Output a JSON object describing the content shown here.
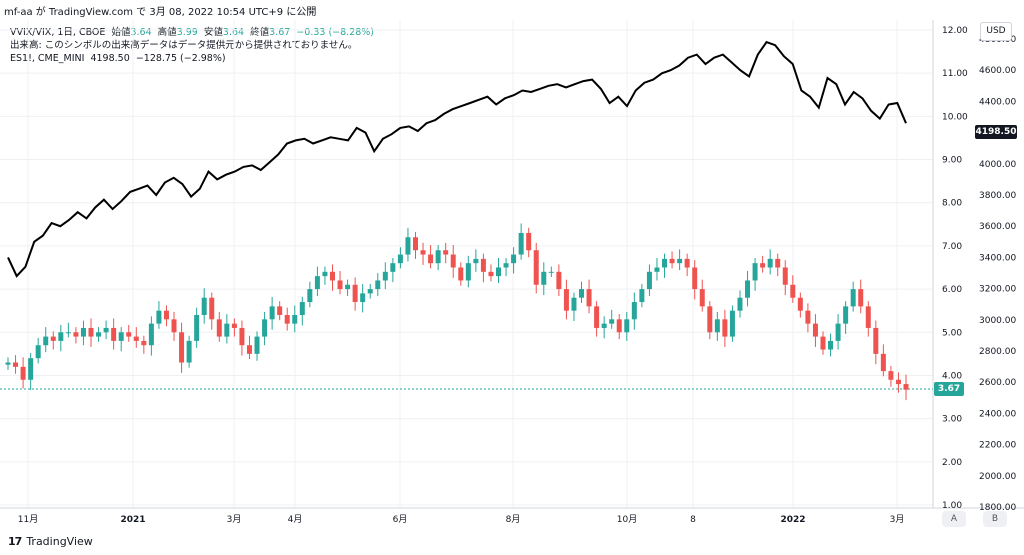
{
  "header": {
    "published": "mf-aa が TradingView.com で 3月 08, 2022 10:54 UTC+9 に公開"
  },
  "legend": {
    "line1_prefix": "VVIX/VIX, 1日, CBOE",
    "open_label": "始値",
    "open_value": "3.64",
    "high_label": "高値",
    "high_value": "3.99",
    "low_label": "安値",
    "low_value": "3.64",
    "close_label": "終値",
    "close_value": "3.67",
    "change": "−0.33 (−8.28%)",
    "line2": "出来高: このシンボルの出来高データはデータ提供元から提供されておりません。",
    "line3_prefix": "ES1!, CME_MINI",
    "line3_price": "4198.50",
    "line3_change": "−128.75 (−2.98%)"
  },
  "currency_button": "USD",
  "price_badge": "4198.50",
  "last_badge": "3.67",
  "scale_buttons": {
    "a": "A",
    "b": "B"
  },
  "footer": {
    "logo": "17",
    "brand": "TradingView"
  },
  "colors": {
    "up": "#26a69a",
    "down": "#ef5350",
    "line": "#000000",
    "grid": "#eef0f4"
  },
  "chart_data": {
    "type": "line",
    "x_tick_labels": [
      "11月",
      "2021",
      "3月",
      "4月",
      "6月",
      "8月",
      "10月",
      "8",
      "2022",
      "3月"
    ],
    "ratio_axis_labels": [
      "12.00",
      "11.00",
      "10.00",
      "9.00",
      "8.00",
      "7.00",
      "6.00",
      "5.00",
      "4.00",
      "3.00",
      "2.00",
      "1.00"
    ],
    "es_axis_labels": [
      "4800.00",
      "4600.00",
      "4400.00",
      "4200.00",
      "4000.00",
      "3800.00",
      "3600.00",
      "3400.00",
      "3200.00",
      "3000.00",
      "2800.00",
      "2600.00",
      "2400.00",
      "2200.00",
      "2000.00",
      "1800.00"
    ],
    "ratio_ylim": [
      1,
      12
    ],
    "es_ylim": [
      1800,
      4800
    ],
    "series": [
      {
        "name": "ES1!",
        "style": "line",
        "values": [
          3400,
          3280,
          3340,
          3500,
          3540,
          3620,
          3600,
          3640,
          3690,
          3650,
          3720,
          3770,
          3710,
          3760,
          3820,
          3840,
          3860,
          3800,
          3880,
          3910,
          3870,
          3790,
          3840,
          3950,
          3900,
          3930,
          3950,
          3980,
          3990,
          3960,
          4010,
          4060,
          4130,
          4150,
          4160,
          4130,
          4150,
          4170,
          4160,
          4150,
          4230,
          4200,
          4080,
          4160,
          4190,
          4230,
          4240,
          4210,
          4260,
          4280,
          4320,
          4350,
          4370,
          4390,
          4410,
          4430,
          4380,
          4420,
          4440,
          4470,
          4460,
          4480,
          4500,
          4510,
          4490,
          4510,
          4530,
          4540,
          4480,
          4390,
          4430,
          4370,
          4470,
          4520,
          4540,
          4580,
          4600,
          4630,
          4680,
          4700,
          4640,
          4680,
          4700,
          4650,
          4600,
          4560,
          4700,
          4780,
          4760,
          4690,
          4640,
          4470,
          4430,
          4360,
          4550,
          4510,
          4380,
          4460,
          4420,
          4340,
          4290,
          4380,
          4390,
          4260
        ]
      },
      {
        "name": "VVIX/VIX",
        "style": "candlestick",
        "values": [
          4.3,
          4.2,
          3.9,
          4.4,
          4.7,
          4.9,
          4.8,
          5.0,
          5.0,
          4.9,
          5.1,
          4.9,
          5.0,
          5.1,
          4.8,
          5.0,
          4.9,
          4.8,
          4.7,
          5.2,
          5.5,
          5.3,
          5.0,
          4.3,
          4.8,
          5.4,
          5.8,
          5.3,
          4.9,
          5.2,
          5.1,
          4.7,
          4.5,
          4.9,
          5.3,
          5.6,
          5.4,
          5.2,
          5.4,
          5.7,
          6.0,
          6.3,
          6.4,
          6.2,
          6.0,
          6.1,
          5.7,
          5.9,
          6.0,
          6.2,
          6.4,
          6.6,
          6.8,
          7.2,
          6.9,
          6.8,
          6.6,
          6.9,
          6.8,
          6.5,
          6.2,
          6.6,
          6.7,
          6.4,
          6.3,
          6.5,
          6.6,
          6.8,
          7.3,
          6.9,
          6.1,
          6.4,
          6.4,
          6.0,
          5.5,
          5.8,
          6.0,
          5.6,
          5.1,
          5.2,
          5.3,
          5.0,
          5.3,
          5.7,
          6.0,
          6.4,
          6.5,
          6.7,
          6.6,
          6.7,
          6.5,
          6.0,
          5.6,
          5.0,
          5.3,
          4.9,
          5.5,
          5.8,
          6.2,
          6.6,
          6.5,
          6.7,
          6.5,
          6.1,
          5.8,
          5.5,
          5.2,
          4.9,
          4.6,
          4.8,
          5.2,
          5.6,
          6.0,
          5.6,
          5.1,
          4.5,
          4.1,
          3.9,
          3.8,
          3.67
        ]
      }
    ],
    "grid": true
  }
}
